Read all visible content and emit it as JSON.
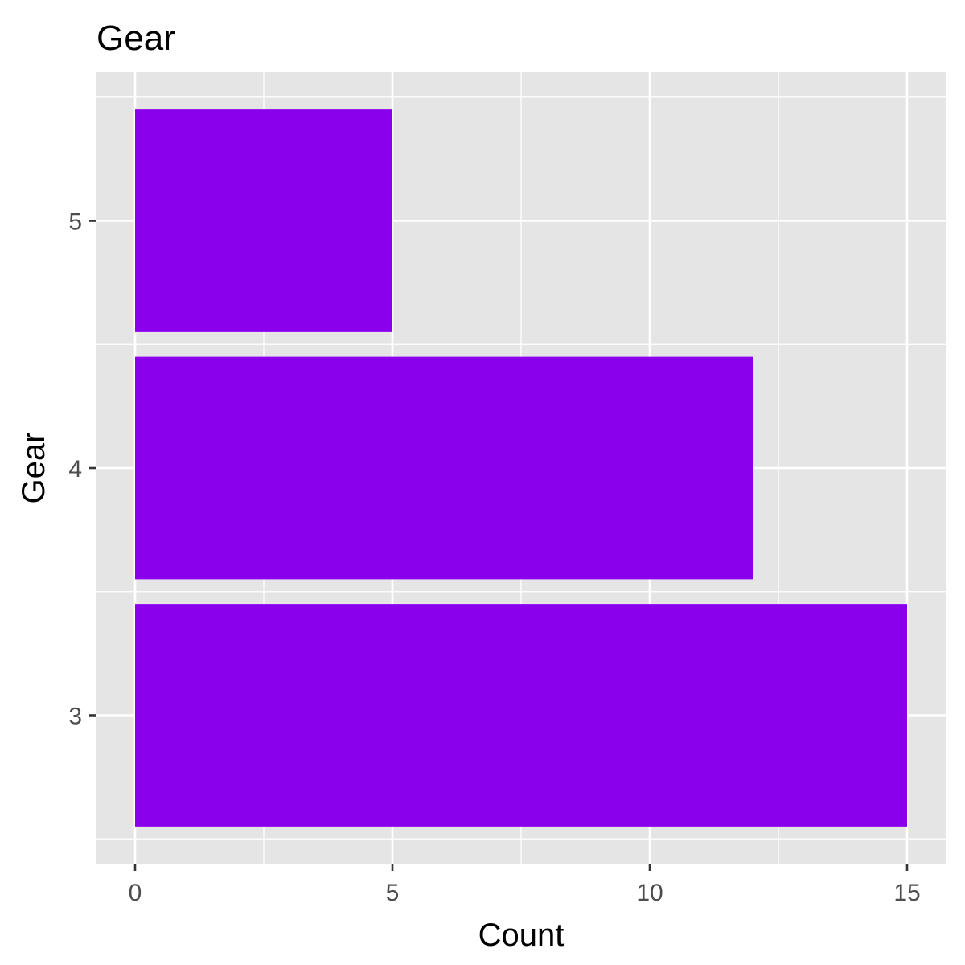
{
  "chart_data": {
    "type": "bar",
    "orientation": "horizontal",
    "title": "Gear",
    "xlabel": "Count",
    "ylabel": "Gear",
    "categories": [
      "3",
      "4",
      "5"
    ],
    "values": [
      15,
      12,
      5
    ],
    "xlim": [
      -0.75,
      15.75
    ],
    "xticks": [
      "0",
      "5",
      "10",
      "15"
    ],
    "xtick_values": [
      0,
      5,
      10,
      15
    ],
    "grid": true,
    "legend": "none",
    "colors": {
      "bar": "#8B00EC",
      "panel_background": "#E5E5E5",
      "grid": "#FFFFFF"
    }
  }
}
